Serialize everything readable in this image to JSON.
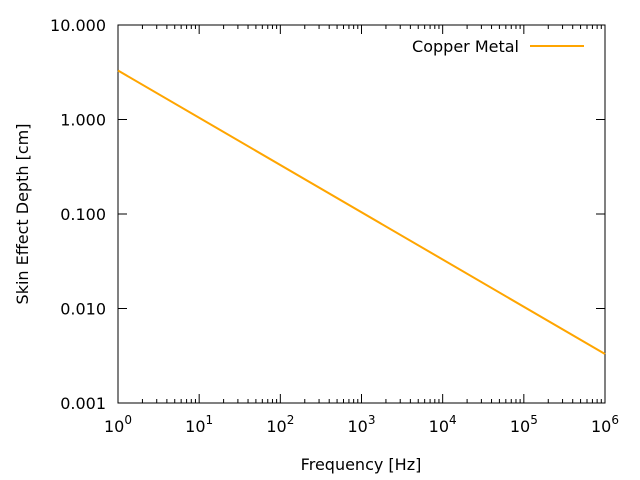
{
  "chart_data": {
    "type": "line",
    "title": "",
    "xlabel": "Frequency [Hz]",
    "ylabel": "Skin Effect Depth [cm]",
    "xscale": "log",
    "yscale": "log",
    "xlim": [
      1,
      1000000
    ],
    "ylim": [
      0.001,
      10
    ],
    "x_ticks": [
      {
        "value": 1,
        "base": "10",
        "exp": "0"
      },
      {
        "value": 10,
        "base": "10",
        "exp": "1"
      },
      {
        "value": 100,
        "base": "10",
        "exp": "2"
      },
      {
        "value": 1000,
        "base": "10",
        "exp": "3"
      },
      {
        "value": 10000,
        "base": "10",
        "exp": "4"
      },
      {
        "value": 100000,
        "base": "10",
        "exp": "5"
      },
      {
        "value": 1000000,
        "base": "10",
        "exp": "6"
      }
    ],
    "y_ticks": [
      {
        "value": 0.001,
        "label": "0.001"
      },
      {
        "value": 0.01,
        "label": "0.010"
      },
      {
        "value": 0.1,
        "label": "0.100"
      },
      {
        "value": 1,
        "label": "1.000"
      },
      {
        "value": 10,
        "label": "10.000"
      }
    ],
    "grid": false,
    "legend_position": "top-right",
    "series": [
      {
        "name": "Copper Metal",
        "color": "#ffa500",
        "x": [
          1,
          1000000
        ],
        "y": [
          3.3,
          0.0033
        ]
      }
    ]
  }
}
